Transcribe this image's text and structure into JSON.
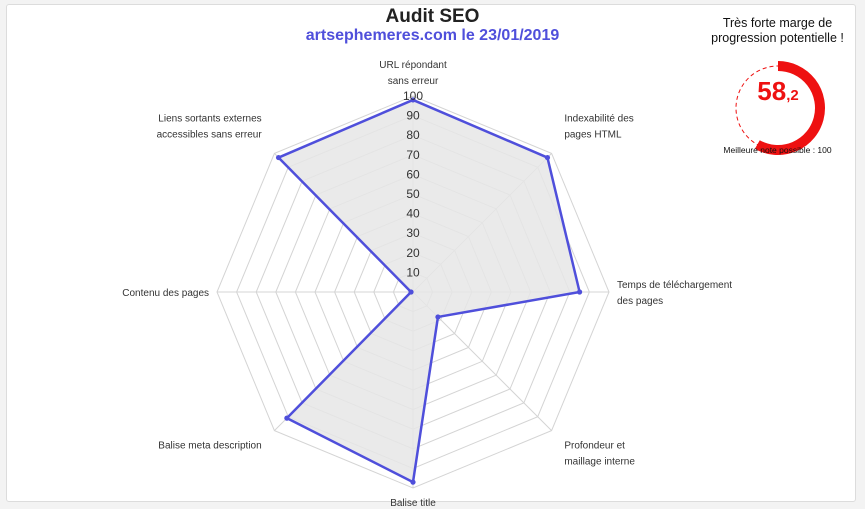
{
  "chart_data": {
    "type": "radar",
    "title": "Audit SEO",
    "subtitle": "artsephemeres.com le 23/01/2019",
    "axes": [
      {
        "label": [
          "URL répondant",
          "sans erreur"
        ],
        "value": 98
      },
      {
        "label": [
          "Indexabilité des",
          "pages HTML"
        ],
        "value": 97
      },
      {
        "label": [
          "Temps de téléchargement",
          "des pages"
        ],
        "value": 85
      },
      {
        "label": [
          "Profondeur et",
          "maillage interne"
        ],
        "value": 18
      },
      {
        "label": [
          "Balise title"
        ],
        "value": 97
      },
      {
        "label": [
          "Balise meta description"
        ],
        "value": 91
      },
      {
        "label": [
          "Contenu des pages"
        ],
        "value": 1
      },
      {
        "label": [
          "Liens sortants externes",
          "accessibles sans erreur"
        ],
        "value": 97
      }
    ],
    "ticks": [
      10,
      20,
      30,
      40,
      50,
      60,
      70,
      80,
      90,
      100
    ],
    "range": [
      0,
      100
    ],
    "colors": {
      "line": "#4f4fdb",
      "fill": "#e6e6e6",
      "grid": "#d4d4d4"
    }
  },
  "score": {
    "headline": "Très forte marge de progression potentielle !",
    "int_part": "58",
    "dec_part": ",2",
    "value": 58.2,
    "max": 100,
    "footer": "Meilleure note possible : 100",
    "color": "#ee1111"
  }
}
